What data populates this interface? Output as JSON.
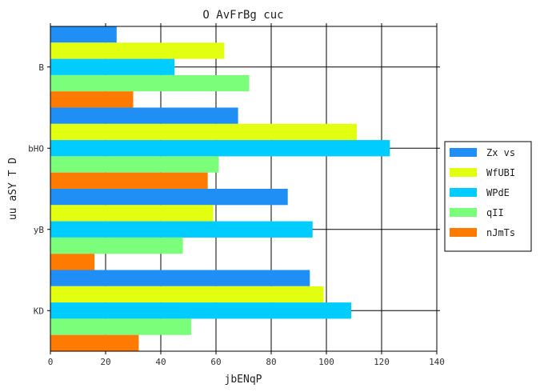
{
  "chart_data": {
    "type": "bar",
    "orientation": "horizontal",
    "title": "O AvFrBg cuc",
    "xlabel": "jbENqP",
    "ylabel": "uu aSY T D",
    "categories": [
      "B",
      "bHO",
      "yB",
      "KD"
    ],
    "xlim": [
      0,
      140
    ],
    "xticks": [
      0,
      20,
      40,
      60,
      80,
      100,
      120,
      140
    ],
    "grid": true,
    "legend_position": "right",
    "series": [
      {
        "name": "Zx vs",
        "color": "#1f8ff6",
        "values": [
          24,
          68,
          86,
          94
        ]
      },
      {
        "name": "WfUBI",
        "color": "#e2ff12",
        "values": [
          63,
          111,
          59,
          99
        ]
      },
      {
        "name": "WPdE",
        "color": "#00ccff",
        "values": [
          45,
          123,
          95,
          109
        ]
      },
      {
        "name": "qII",
        "color": "#7bff7b",
        "values": [
          72,
          61,
          48,
          51
        ]
      },
      {
        "name": "nJmTs",
        "color": "#ff7a00",
        "values": [
          30,
          57,
          16,
          32
        ]
      }
    ]
  }
}
